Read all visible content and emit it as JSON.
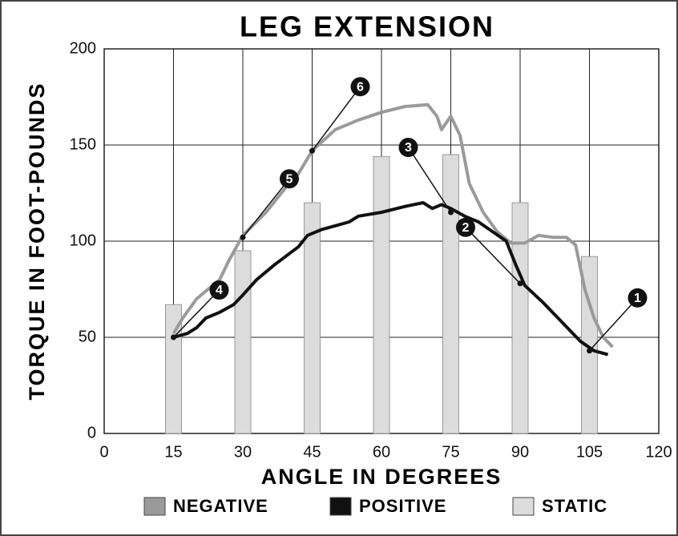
{
  "chart_data": {
    "type": "line",
    "title": "LEG EXTENSION",
    "x_label": "ANGLE IN DEGREES",
    "y_label": "TORQUE IN FOOT-POUNDS",
    "xlim": [
      0,
      120
    ],
    "xticks": [
      0,
      15,
      30,
      45,
      60,
      75,
      90,
      105,
      120
    ],
    "ylim": [
      0,
      200
    ],
    "yticks": [
      0,
      50,
      100,
      150,
      200
    ],
    "grid": true,
    "series": [
      {
        "name": "NEGATIVE",
        "type": "line",
        "color": "#9a9a9a",
        "x": [
          15,
          17,
          20,
          25,
          27,
          30,
          35,
          40,
          42,
          45,
          50,
          55,
          60,
          65,
          70,
          72,
          73,
          75,
          77,
          79,
          82,
          85,
          88,
          91,
          94,
          97,
          100,
          102,
          104,
          106,
          108,
          110
        ],
        "values": [
          52,
          60,
          70,
          80,
          90,
          103,
          115,
          130,
          135,
          147,
          158,
          163,
          167,
          170,
          171,
          165,
          158,
          165,
          155,
          130,
          115,
          105,
          99,
          99,
          103,
          102,
          102,
          98,
          75,
          60,
          50,
          45
        ]
      },
      {
        "name": "POSITIVE",
        "type": "line",
        "color": "#111111",
        "x": [
          15,
          18,
          20,
          22,
          25,
          28,
          30,
          33,
          37,
          42,
          44,
          47,
          50,
          53,
          55,
          60,
          65,
          69,
          71,
          73,
          75,
          78,
          81,
          84,
          87,
          89,
          91,
          95,
          99,
          103,
          106,
          109
        ],
        "values": [
          50,
          52,
          55,
          60,
          63,
          67,
          72,
          80,
          88,
          97,
          103,
          106,
          108,
          110,
          113,
          115,
          118,
          120,
          117,
          119,
          117,
          113,
          110,
          105,
          100,
          88,
          77,
          68,
          58,
          48,
          43,
          41
        ]
      },
      {
        "name": "STATIC",
        "type": "bar",
        "color": "#dcdcdc",
        "x": [
          15,
          30,
          45,
          60,
          75,
          90,
          105
        ],
        "values": [
          67,
          95,
          120,
          144,
          145,
          120,
          92
        ]
      }
    ],
    "annotations": [
      {
        "label": "1",
        "x": 105,
        "y": 43
      },
      {
        "label": "2",
        "x": 90,
        "y": 78
      },
      {
        "label": "3",
        "x": 75,
        "y": 115
      },
      {
        "label": "4",
        "x": 15,
        "y": 50
      },
      {
        "label": "5",
        "x": 30,
        "y": 102
      },
      {
        "label": "6",
        "x": 45,
        "y": 147
      }
    ]
  }
}
